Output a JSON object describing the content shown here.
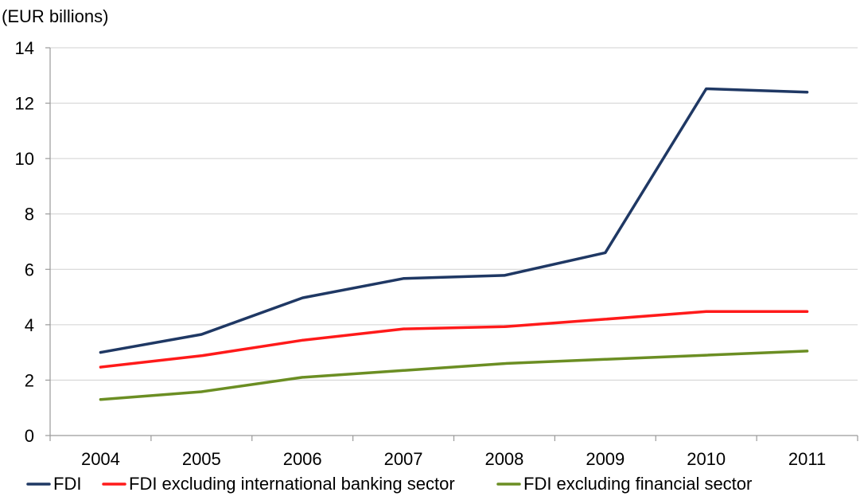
{
  "chart_data": {
    "type": "line",
    "y_unit_label": "(EUR billions)",
    "categories": [
      "2004",
      "2005",
      "2006",
      "2007",
      "2008",
      "2009",
      "2010",
      "2011"
    ],
    "ylim": [
      0,
      14
    ],
    "yticks": [
      0,
      2,
      4,
      6,
      8,
      10,
      12,
      14
    ],
    "grid": true,
    "legend_position": "bottom",
    "series": [
      {
        "name": "FDI",
        "color": "#1f3864",
        "values": [
          3.0,
          3.65,
          4.97,
          5.67,
          5.78,
          6.6,
          12.52,
          12.4
        ]
      },
      {
        "name": "FDI excluding international banking sector",
        "color": "#ff1a1a",
        "values": [
          2.47,
          2.88,
          3.44,
          3.85,
          3.93,
          4.2,
          4.48,
          4.48
        ]
      },
      {
        "name": "FDI excluding financial sector",
        "color": "#6b8e23",
        "values": [
          1.3,
          1.58,
          2.1,
          2.35,
          2.6,
          2.75,
          2.9,
          3.05
        ]
      }
    ]
  }
}
